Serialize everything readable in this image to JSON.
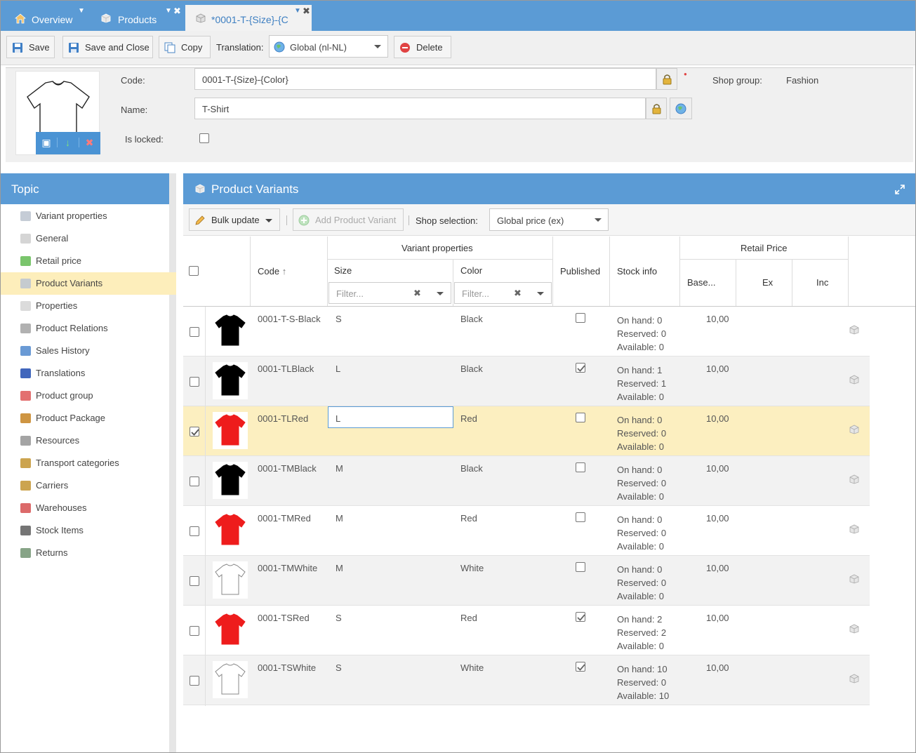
{
  "tabs": [
    {
      "label": "Overview",
      "icon": "home-icon"
    },
    {
      "label": "Products",
      "icon": "box-icon"
    },
    {
      "label": "*0001-T-{Size}-{C",
      "icon": "box-icon"
    }
  ],
  "toolbar": {
    "save": "Save",
    "save_close": "Save and Close",
    "copy": "Copy",
    "translation_label": "Translation:",
    "translation_value": "Global (nl-NL)",
    "delete": "Delete"
  },
  "header": {
    "code_label": "Code:",
    "code_value": "0001-T-{Size}-{Color}",
    "name_label": "Name:",
    "name_value": "T-Shirt",
    "locked_label": "Is locked:",
    "shop_group_label": "Shop group:",
    "shop_group_value": "Fashion"
  },
  "topic": {
    "title": "Topic",
    "items": [
      {
        "label": "Variant properties",
        "icon": "variant-icon"
      },
      {
        "label": "General",
        "icon": "box-icon"
      },
      {
        "label": "Retail price",
        "icon": "money-icon"
      },
      {
        "label": "Product Variants",
        "icon": "variant-icon"
      },
      {
        "label": "Properties",
        "icon": "properties-icon"
      },
      {
        "label": "Product Relations",
        "icon": "relations-icon"
      },
      {
        "label": "Sales History",
        "icon": "chart-icon"
      },
      {
        "label": "Translations",
        "icon": "flag-icon"
      },
      {
        "label": "Product group",
        "icon": "group-icon"
      },
      {
        "label": "Product Package",
        "icon": "package-icon"
      },
      {
        "label": "Resources",
        "icon": "paperclip-icon"
      },
      {
        "label": "Transport categories",
        "icon": "truck-icon"
      },
      {
        "label": "Carriers",
        "icon": "truck-icon"
      },
      {
        "label": "Warehouses",
        "icon": "warehouse-icon"
      },
      {
        "label": "Stock Items",
        "icon": "list-icon"
      },
      {
        "label": "Returns",
        "icon": "returns-icon"
      }
    ],
    "selected_index": 3
  },
  "variants": {
    "title": "Product Variants",
    "bulk_update": "Bulk update",
    "add_variant": "Add Product Variant",
    "shop_selection_label": "Shop selection:",
    "shop_selection_value": "Global price (ex)",
    "columns": {
      "code": "Code",
      "variant_properties": "Variant properties",
      "size": "Size",
      "color": "Color",
      "published": "Published",
      "stock_info": "Stock info",
      "retail_price": "Retail Price",
      "base": "Base...",
      "ex": "Ex",
      "inc": "Inc"
    },
    "filter_placeholder": "Filter...",
    "rows": [
      {
        "code": "0001-T-S-Black",
        "size": "S",
        "color": "Black",
        "shirt": "#000000",
        "published": false,
        "on_hand": "On hand: 0",
        "reserved": "Reserved: 0",
        "available": "Available: 0",
        "base": "10,00",
        "selected": false
      },
      {
        "code": "0001-TLBlack",
        "size": "L",
        "color": "Black",
        "shirt": "#000000",
        "published": true,
        "on_hand": "On hand: 1",
        "reserved": "Reserved: 1",
        "available": "Available: 0",
        "base": "10,00",
        "selected": false
      },
      {
        "code": "0001-TLRed",
        "size": "L",
        "color": "Red",
        "shirt": "#ee1c1c",
        "published": false,
        "on_hand": "On hand: 0",
        "reserved": "Reserved: 0",
        "available": "Available: 0",
        "base": "10,00",
        "selected": true
      },
      {
        "code": "0001-TMBlack",
        "size": "M",
        "color": "Black",
        "shirt": "#000000",
        "published": false,
        "on_hand": "On hand: 0",
        "reserved": "Reserved: 0",
        "available": "Available: 0",
        "base": "10,00",
        "selected": false
      },
      {
        "code": "0001-TMRed",
        "size": "M",
        "color": "Red",
        "shirt": "#ee1c1c",
        "published": false,
        "on_hand": "On hand: 0",
        "reserved": "Reserved: 0",
        "available": "Available: 0",
        "base": "10,00",
        "selected": false
      },
      {
        "code": "0001-TMWhite",
        "size": "M",
        "color": "White",
        "shirt": "#ffffff",
        "published": false,
        "on_hand": "On hand: 0",
        "reserved": "Reserved: 0",
        "available": "Available: 0",
        "base": "10,00",
        "selected": false
      },
      {
        "code": "0001-TSRed",
        "size": "S",
        "color": "Red",
        "shirt": "#ee1c1c",
        "published": true,
        "on_hand": "On hand: 2",
        "reserved": "Reserved: 2",
        "available": "Available: 0",
        "base": "10,00",
        "selected": false
      },
      {
        "code": "0001-TSWhite",
        "size": "S",
        "color": "White",
        "shirt": "#ffffff",
        "published": true,
        "on_hand": "On hand: 10",
        "reserved": "Reserved: 0",
        "available": "Available: 10",
        "base": "10,00",
        "selected": false
      }
    ]
  },
  "colors": {
    "accent": "#5b9bd5",
    "selected_row": "#fcefc0",
    "selected_topic": "#fdeebb"
  }
}
